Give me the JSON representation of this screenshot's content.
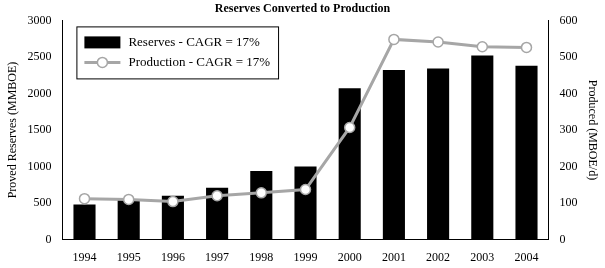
{
  "chart_data": {
    "type": "bar",
    "title": "Reserves Converted to Production",
    "y_label": "Proved Reserves (MMBOE)",
    "y2_label": "Produced (MBOE/d)",
    "categories": [
      "1994",
      "1995",
      "1996",
      "1997",
      "1998",
      "1999",
      "2000",
      "2001",
      "2002",
      "2003",
      "2004"
    ],
    "series": [
      {
        "name": "Reserves - CAGR = 17%",
        "type": "bar",
        "color": "#000000",
        "values": [
          480,
          550,
          600,
          710,
          940,
          1000,
          2070,
          2320,
          2340,
          2520,
          2380
        ]
      },
      {
        "name": "Production - CAGR = 17%",
        "type": "line",
        "color": "#a6a6a6",
        "marker": "circle",
        "axis": "y2",
        "values": [
          112,
          110,
          104,
          120,
          128,
          137,
          307,
          548,
          541,
          528,
          526
        ]
      }
    ],
    "ylim": [
      0,
      3000
    ],
    "yticks": [
      0,
      500,
      1000,
      1500,
      2000,
      2500,
      3000
    ],
    "y2lim": [
      0,
      600
    ],
    "y2ticks": [
      0,
      100,
      200,
      300,
      400,
      500,
      600
    ],
    "grid": false,
    "legend": "upper left"
  }
}
